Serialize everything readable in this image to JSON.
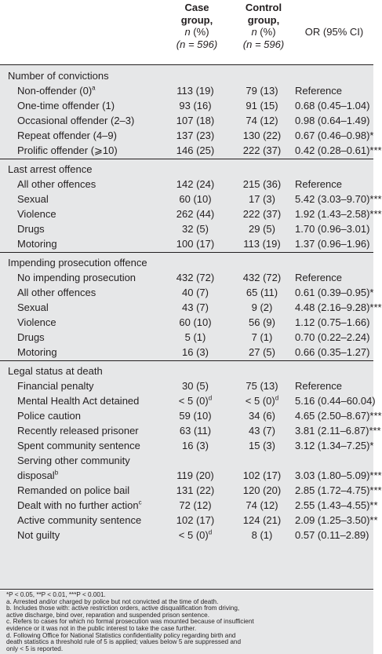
{
  "header": {
    "case": {
      "line1": "Case",
      "line2": "group,",
      "line3_n": "n",
      "line3_rest": " (%)",
      "line4": "(n = 596)"
    },
    "control": {
      "line1": "Control",
      "line2": "group,",
      "line3_n": "n",
      "line3_rest": " (%)",
      "line4": "(n = 596)"
    },
    "or": "OR (95% CI)"
  },
  "rows": [
    {
      "type": "section",
      "label": "Number of convictions"
    },
    {
      "label": "Non-offender (0)",
      "sup": "a",
      "case": "113 (19)",
      "control": "79 (13)",
      "or": "Reference"
    },
    {
      "label": "One-time offender (1)",
      "case": "93 (16)",
      "control": "91 (15)",
      "or": "0.68 (0.45–1.04)"
    },
    {
      "label": "Occasional offender (2–3)",
      "case": "107 (18)",
      "control": "74 (12)",
      "or": "0.98 (0.64–1.49)"
    },
    {
      "label": "Repeat offender (4–9)",
      "case": "137 (23)",
      "control": "130 (22)",
      "or": "0.67 (0.46–0.98)*"
    },
    {
      "label": "Prolific offender (⩾10)",
      "case": "146 (25)",
      "control": "222 (37)",
      "or": "0.42 (0.28–0.61)***"
    },
    {
      "type": "section",
      "label": "Last arrest offence"
    },
    {
      "label": "All other offences",
      "case": "142 (24)",
      "control": "215 (36)",
      "or": "Reference"
    },
    {
      "label": "Sexual",
      "case": "60 (10)",
      "control": "17 (3)",
      "or": "5.42 (3.03–9.70)***"
    },
    {
      "label": "Violence",
      "case": "262 (44)",
      "control": "222 (37)",
      "or": "1.92 (1.43–2.58)***"
    },
    {
      "label": "Drugs",
      "case": "32 (5)",
      "control": "29 (5)",
      "or": "1.70 (0.96–3.01)"
    },
    {
      "label": "Motoring",
      "case": "100 (17)",
      "control": "113 (19)",
      "or": "1.37 (0.96–1.96)"
    },
    {
      "type": "section",
      "label": "Impending prosecution offence"
    },
    {
      "label": "No impending prosecution",
      "case": "432 (72)",
      "control": "432 (72)",
      "or": "Reference"
    },
    {
      "label": "All other offences",
      "case": "40 (7)",
      "control": "65 (11)",
      "or": "0.61 (0.39–0.95)*"
    },
    {
      "label": "Sexual",
      "case": "43 (7)",
      "control": "9 (2)",
      "or": "4.48 (2.16–9.28)***"
    },
    {
      "label": "Violence",
      "case": "60 (10)",
      "control": "56 (9)",
      "or": "1.12 (0.75–1.66)"
    },
    {
      "label": "Drugs",
      "case": "5 (1)",
      "control": "7 (1)",
      "or": "0.70 (0.22–2.24)"
    },
    {
      "label": "Motoring",
      "case": "16 (3)",
      "control": "27 (5)",
      "or": "0.66 (0.35–1.27)"
    },
    {
      "type": "section",
      "label": "Legal status at death"
    },
    {
      "label": "Financial penalty",
      "case": "30 (5)",
      "control": "75 (13)",
      "or": "Reference"
    },
    {
      "label": "Mental Health Act detained",
      "case": "< 5 (0)",
      "caseSup": "d",
      "control": "< 5 (0)",
      "controlSup": "d",
      "or": "5.16 (0.44–60.04)"
    },
    {
      "label": "Police caution",
      "case": "59 (10)",
      "control": "34 (6)",
      "or": "4.65 (2.50–8.67)***"
    },
    {
      "label": "Recently released prisoner",
      "case": "63 (11)",
      "control": "43 (7)",
      "or": "3.81 (2.11–6.87)***"
    },
    {
      "label": "Spent community sentence",
      "case": "16 (3)",
      "control": "15 (3)",
      "or": "3.12 (1.34–7.25)*"
    },
    {
      "label": "Serving other community"
    },
    {
      "label": "disposal",
      "sup": "b",
      "case": "119 (20)",
      "control": "102 (17)",
      "or": "3.03 (1.80–5.09)***"
    },
    {
      "label": "Remanded on police bail",
      "case": "131 (22)",
      "control": "120 (20)",
      "or": "2.85 (1.72–4.75)***"
    },
    {
      "label": "Dealt with no further action",
      "sup": "c",
      "case": "72 (12)",
      "control": "74 (12)",
      "or": "2.55 (1.43–4.55)**"
    },
    {
      "label": "Active community sentence",
      "case": "102 (17)",
      "control": "124 (21)",
      "or": "2.09 (1.25–3.50)**"
    },
    {
      "label": "Not guilty",
      "case": "< 5 (0)",
      "caseSup": "d",
      "control": "8 (1)",
      "or": "0.57 (0.11–2.89)"
    }
  ],
  "footnotes": [
    "*P < 0.05, **P < 0.01, ***P < 0.001.",
    "a. Arrested and/or charged by police but not convicted at the time of death.",
    "b. Includes those with: active restriction orders, active disqualification from driving,",
    "active discharge, bind over, reparation and suspended prison sentence.",
    "c. Refers to cases for which no formal prosecution was mounted because of insufficient",
    "evidence or it was not in the public interest to take the case further.",
    "d. Following Office for National Statistics confidentiality policy regarding birth and",
    "death statistics a threshold rule of 5 is applied; values below 5 are suppressed and",
    "only < 5 is reported."
  ]
}
